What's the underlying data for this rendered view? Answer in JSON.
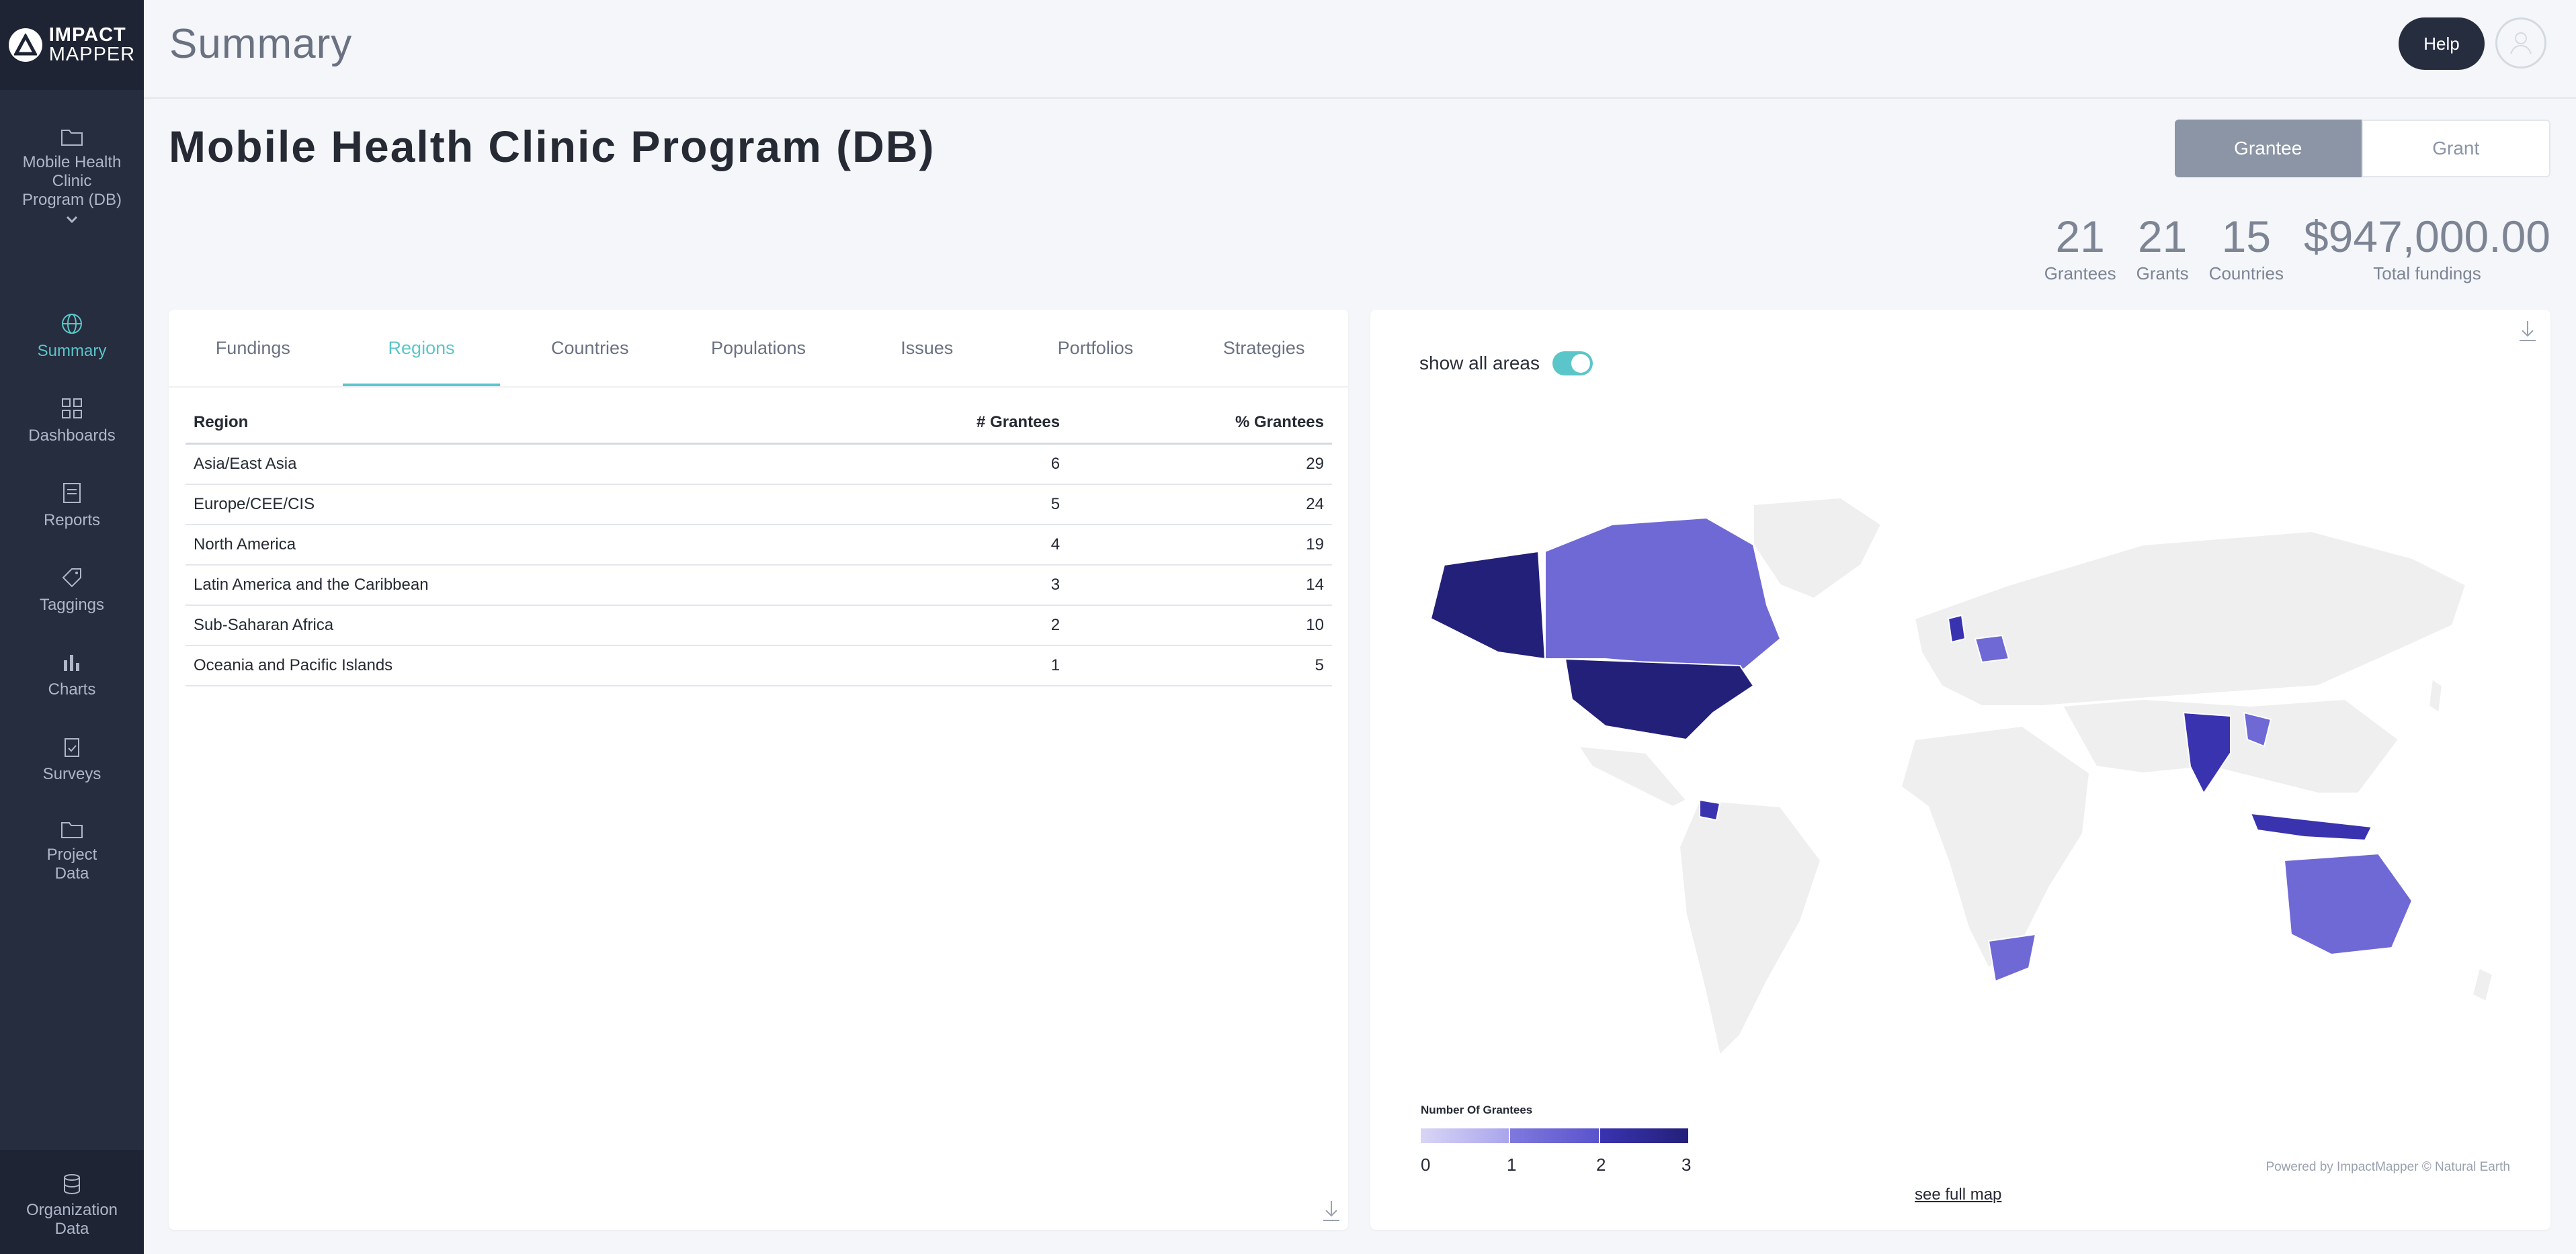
{
  "brand": {
    "line1": "IMPACT",
    "line2": "MAPPER"
  },
  "sidebar": {
    "program": "Mobile Health Clinic Program (DB)",
    "items": [
      {
        "label": "Summary",
        "icon": "globe-icon",
        "active": true
      },
      {
        "label": "Dashboards",
        "icon": "grid-icon"
      },
      {
        "label": "Reports",
        "icon": "report-icon"
      },
      {
        "label": "Taggings",
        "icon": "tag-icon"
      },
      {
        "label": "Charts",
        "icon": "bar-chart-icon"
      },
      {
        "label": "Surveys",
        "icon": "clipboard-icon"
      },
      {
        "label": "Project Data",
        "icon": "folder-icon"
      }
    ],
    "org": "Organization Data"
  },
  "header": {
    "title": "Summary",
    "help": "Help"
  },
  "program_title": "Mobile Health Clinic Program (DB)",
  "view_toggle": {
    "active": "Grantee",
    "inactive": "Grant"
  },
  "stats": [
    {
      "value": "21",
      "label": "Grantees"
    },
    {
      "value": "21",
      "label": "Grants"
    },
    {
      "value": "15",
      "label": "Countries"
    },
    {
      "value": "$947,000.00",
      "label": "Total fundings"
    }
  ],
  "tabs": [
    "Fundings",
    "Regions",
    "Countries",
    "Populations",
    "Issues",
    "Portfolios",
    "Strategies"
  ],
  "active_tab": "Regions",
  "table": {
    "columns": [
      "Region",
      "# Grantees",
      "% Grantees"
    ],
    "rows": [
      [
        "Asia/East Asia",
        "6",
        "29"
      ],
      [
        "Europe/CEE/CIS",
        "5",
        "24"
      ],
      [
        "North America",
        "4",
        "19"
      ],
      [
        "Latin America and the Caribbean",
        "3",
        "14"
      ],
      [
        "Sub-Saharan Africa",
        "2",
        "10"
      ],
      [
        "Oceania and Pacific Islands",
        "1",
        "5"
      ]
    ]
  },
  "map": {
    "toggle_label": "show all areas",
    "legend_title": "Number Of Grantees",
    "legend_ticks": [
      "0",
      "1",
      "2",
      "3"
    ],
    "legend_colors": [
      "#c9c6f2",
      "#6f69d6",
      "#3a33b0",
      "#23207a"
    ],
    "attribution": "Powered by ImpactMapper © Natural Earth",
    "full_map_link": "see full map"
  },
  "colors": {
    "accent": "#5bc6c9",
    "sidebar": "#262d3f"
  }
}
